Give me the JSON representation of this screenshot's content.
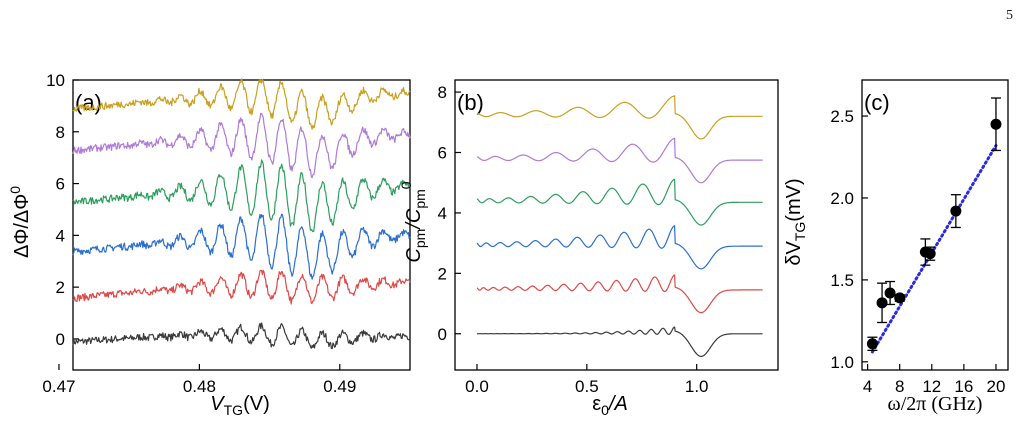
{
  "page_number": "5",
  "chart_data": [
    {
      "panel": "(a)",
      "type": "line",
      "xlabel": {
        "main": "V",
        "sub": "TG",
        "unit": "(V)"
      },
      "ylabel": {
        "main": "ΔΦ/ΔΦ",
        "sup": "0"
      },
      "xlim": [
        0.471,
        0.495
      ],
      "ylim": [
        -1.2,
        10
      ],
      "xticks": [
        0.47,
        0.48,
        0.49
      ],
      "xtick_labels": [
        "0.47",
        "0.48",
        "0.49"
      ],
      "yticks": [
        0,
        2,
        4,
        6,
        8,
        10
      ],
      "ytick_labels": [
        "0",
        "2",
        "4",
        "6",
        "8",
        "10"
      ],
      "series": [
        {
          "offset": 0,
          "color": "#3a3a3a"
        },
        {
          "offset": 1.7,
          "color": "#e04848"
        },
        {
          "offset": 3.5,
          "color": "#2a6fd1"
        },
        {
          "offset": 5.4,
          "color": "#2e9e5e"
        },
        {
          "offset": 7.4,
          "color": "#b07ad8"
        },
        {
          "offset": 9.0,
          "color": "#c9a020"
        }
      ]
    },
    {
      "panel": "(b)",
      "type": "line",
      "xlabel": {
        "main": "ε",
        "sub": "0",
        "rest": "/A"
      },
      "ylabel": {
        "main": "C",
        "sub1": "pm",
        "mid": "/C",
        "sub2": "pm",
        "sup": "0"
      },
      "xlim": [
        -0.1,
        1.37
      ],
      "ylim": [
        -1.2,
        8.4
      ],
      "xticks": [
        0.0,
        0.5,
        1.0
      ],
      "xtick_labels": [
        "0.0",
        "0.5",
        "1.0"
      ],
      "yticks": [
        0,
        2,
        4,
        6,
        8
      ],
      "ytick_labels": [
        "0",
        "2",
        "4",
        "6",
        "8"
      ],
      "series": [
        {
          "offset": 0,
          "color": "#3a3a3a"
        },
        {
          "offset": 1.45,
          "color": "#e04848"
        },
        {
          "offset": 2.9,
          "color": "#2a6fd1"
        },
        {
          "offset": 4.35,
          "color": "#2e9e5e"
        },
        {
          "offset": 5.75,
          "color": "#b07ad8"
        },
        {
          "offset": 7.2,
          "color": "#c9a020"
        }
      ]
    },
    {
      "panel": "(c)",
      "type": "scatter",
      "xlabel": {
        "main": "ω/2π (GHz)"
      },
      "ylabel": {
        "main": "δV",
        "sub": "TG",
        "unit": "(mV)"
      },
      "xlim": [
        3.3,
        21.5
      ],
      "ylim": [
        0.95,
        2.72
      ],
      "xticks": [
        4,
        8,
        12,
        16,
        20
      ],
      "xtick_labels": [
        "4",
        "8",
        "12",
        "16",
        "20"
      ],
      "yticks": [
        1.0,
        1.5,
        2.0,
        2.5
      ],
      "ytick_labels": [
        "1.0",
        "1.5",
        "2.0",
        "2.5"
      ],
      "points": [
        {
          "x": 4.6,
          "y": 1.11,
          "err": 0.04
        },
        {
          "x": 5.8,
          "y": 1.36,
          "err": 0.12
        },
        {
          "x": 6.8,
          "y": 1.42,
          "err": 0.07
        },
        {
          "x": 8.0,
          "y": 1.39,
          "err": 0.02
        },
        {
          "x": 11.2,
          "y": 1.67,
          "err": 0.08
        },
        {
          "x": 11.8,
          "y": 1.66,
          "err": 0.04
        },
        {
          "x": 15.0,
          "y": 1.92,
          "err": 0.1
        },
        {
          "x": 20.0,
          "y": 2.45,
          "err": 0.16
        }
      ],
      "fit": {
        "x": [
          4.6,
          20.0
        ],
        "y": [
          1.06,
          2.32
        ],
        "color": "#2a2ae0"
      }
    }
  ]
}
